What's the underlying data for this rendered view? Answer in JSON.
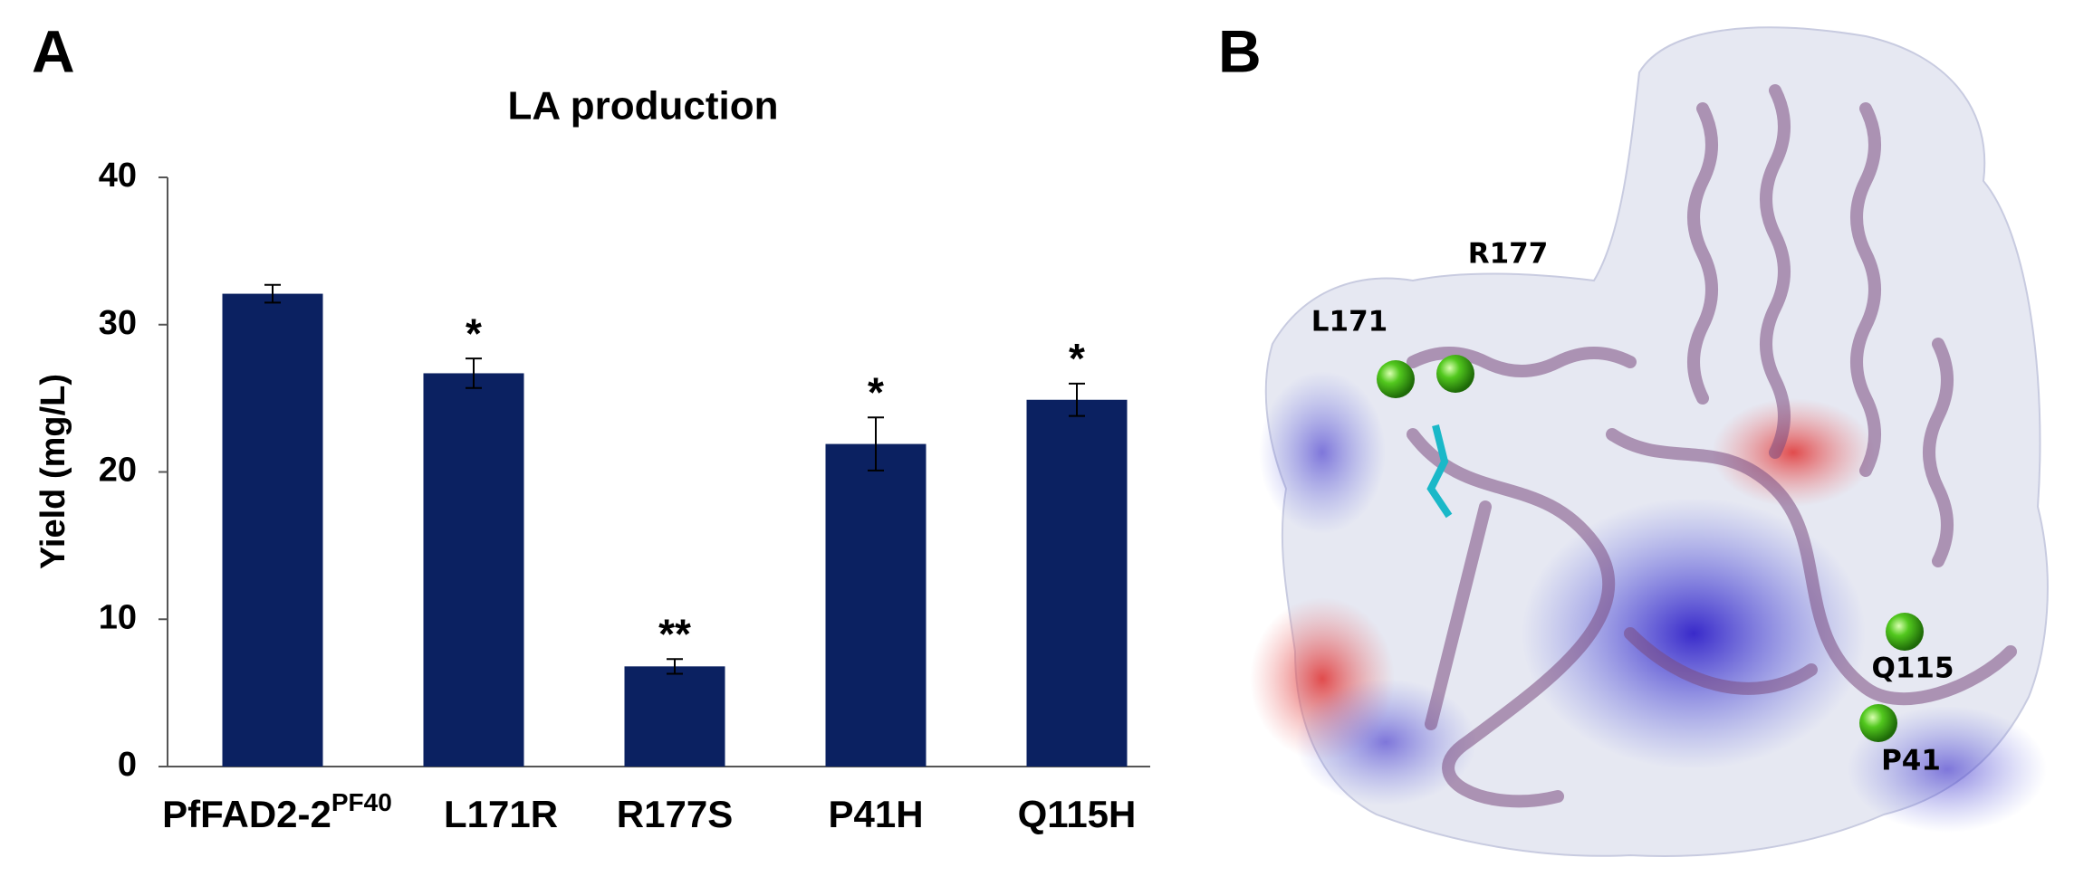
{
  "panel_a_label": "A",
  "chart_data": {
    "type": "bar",
    "title": "LA production",
    "y_label": "Yield (mg/L)",
    "categories": [
      "PfFAD2-2",
      "L171R",
      "R177S",
      "P41H",
      "Q115H"
    ],
    "category_superscripts": [
      "PF40",
      null,
      null,
      null,
      null
    ],
    "values": [
      32.1,
      26.7,
      6.8,
      21.9,
      24.9
    ],
    "errors": [
      0.6,
      1.0,
      0.5,
      1.8,
      1.1
    ],
    "annotations": [
      null,
      "*",
      "**",
      "*",
      "*"
    ],
    "color": "#0b2161",
    "ylim": [
      0,
      40
    ],
    "yticks": [
      0,
      10,
      20,
      30,
      40
    ],
    "grid": false
  },
  "panel_b": {
    "label": "B",
    "residues": [
      "R177",
      "L171",
      "Q115",
      "P41"
    ]
  }
}
